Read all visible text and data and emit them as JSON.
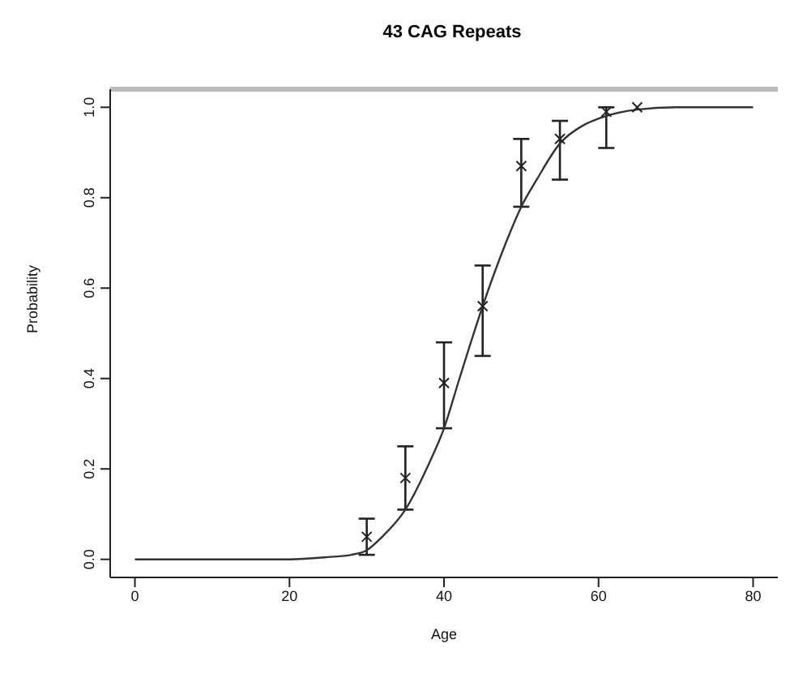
{
  "chart_data": {
    "type": "scatter",
    "title": "43 CAG Repeats",
    "xlabel": "Age",
    "ylabel": "Probability",
    "xlim": [
      -3.2,
      83.2
    ],
    "ylim": [
      -0.04,
      1.04
    ],
    "xticks": [
      0,
      20,
      40,
      60,
      80
    ],
    "yticks": [
      {
        "value": 0,
        "label": "0.0"
      },
      {
        "value": 0.2,
        "label": "0.2"
      },
      {
        "value": 0.4,
        "label": "0.4"
      },
      {
        "value": 0.6,
        "label": "0.6"
      },
      {
        "value": 0.8,
        "label": "0.8"
      },
      {
        "value": 1,
        "label": "1.0"
      }
    ],
    "grid": false,
    "marker": "cross",
    "series": [
      {
        "color": "#222222",
        "x": [
          30,
          35,
          40,
          45,
          50,
          55,
          61,
          65
        ],
        "values": [
          0.05,
          0.18,
          0.39,
          0.56,
          0.87,
          0.93,
          0.99,
          1.0
        ],
        "errors": [
          [
            0.01,
            0.09
          ],
          [
            0.11,
            0.25
          ],
          [
            0.29,
            0.48
          ],
          [
            0.45,
            0.65
          ],
          [
            0.78,
            0.93
          ],
          [
            0.84,
            0.97
          ],
          [
            0.91,
            1.0
          ],
          null
        ]
      },
      {
        "type": "line",
        "color": "#333333",
        "marker": "none",
        "line_style": "solid",
        "x": [
          0,
          10,
          20,
          25,
          28,
          30,
          32,
          35,
          38,
          40,
          42,
          45,
          48,
          50,
          52,
          55,
          58,
          60,
          65,
          70,
          80
        ],
        "values": [
          0,
          0,
          0,
          0.005,
          0.01,
          0.02,
          0.05,
          0.11,
          0.21,
          0.29,
          0.4,
          0.56,
          0.7,
          0.78,
          0.84,
          0.92,
          0.96,
          0.975,
          0.995,
          1.0,
          1.0
        ]
      }
    ]
  }
}
